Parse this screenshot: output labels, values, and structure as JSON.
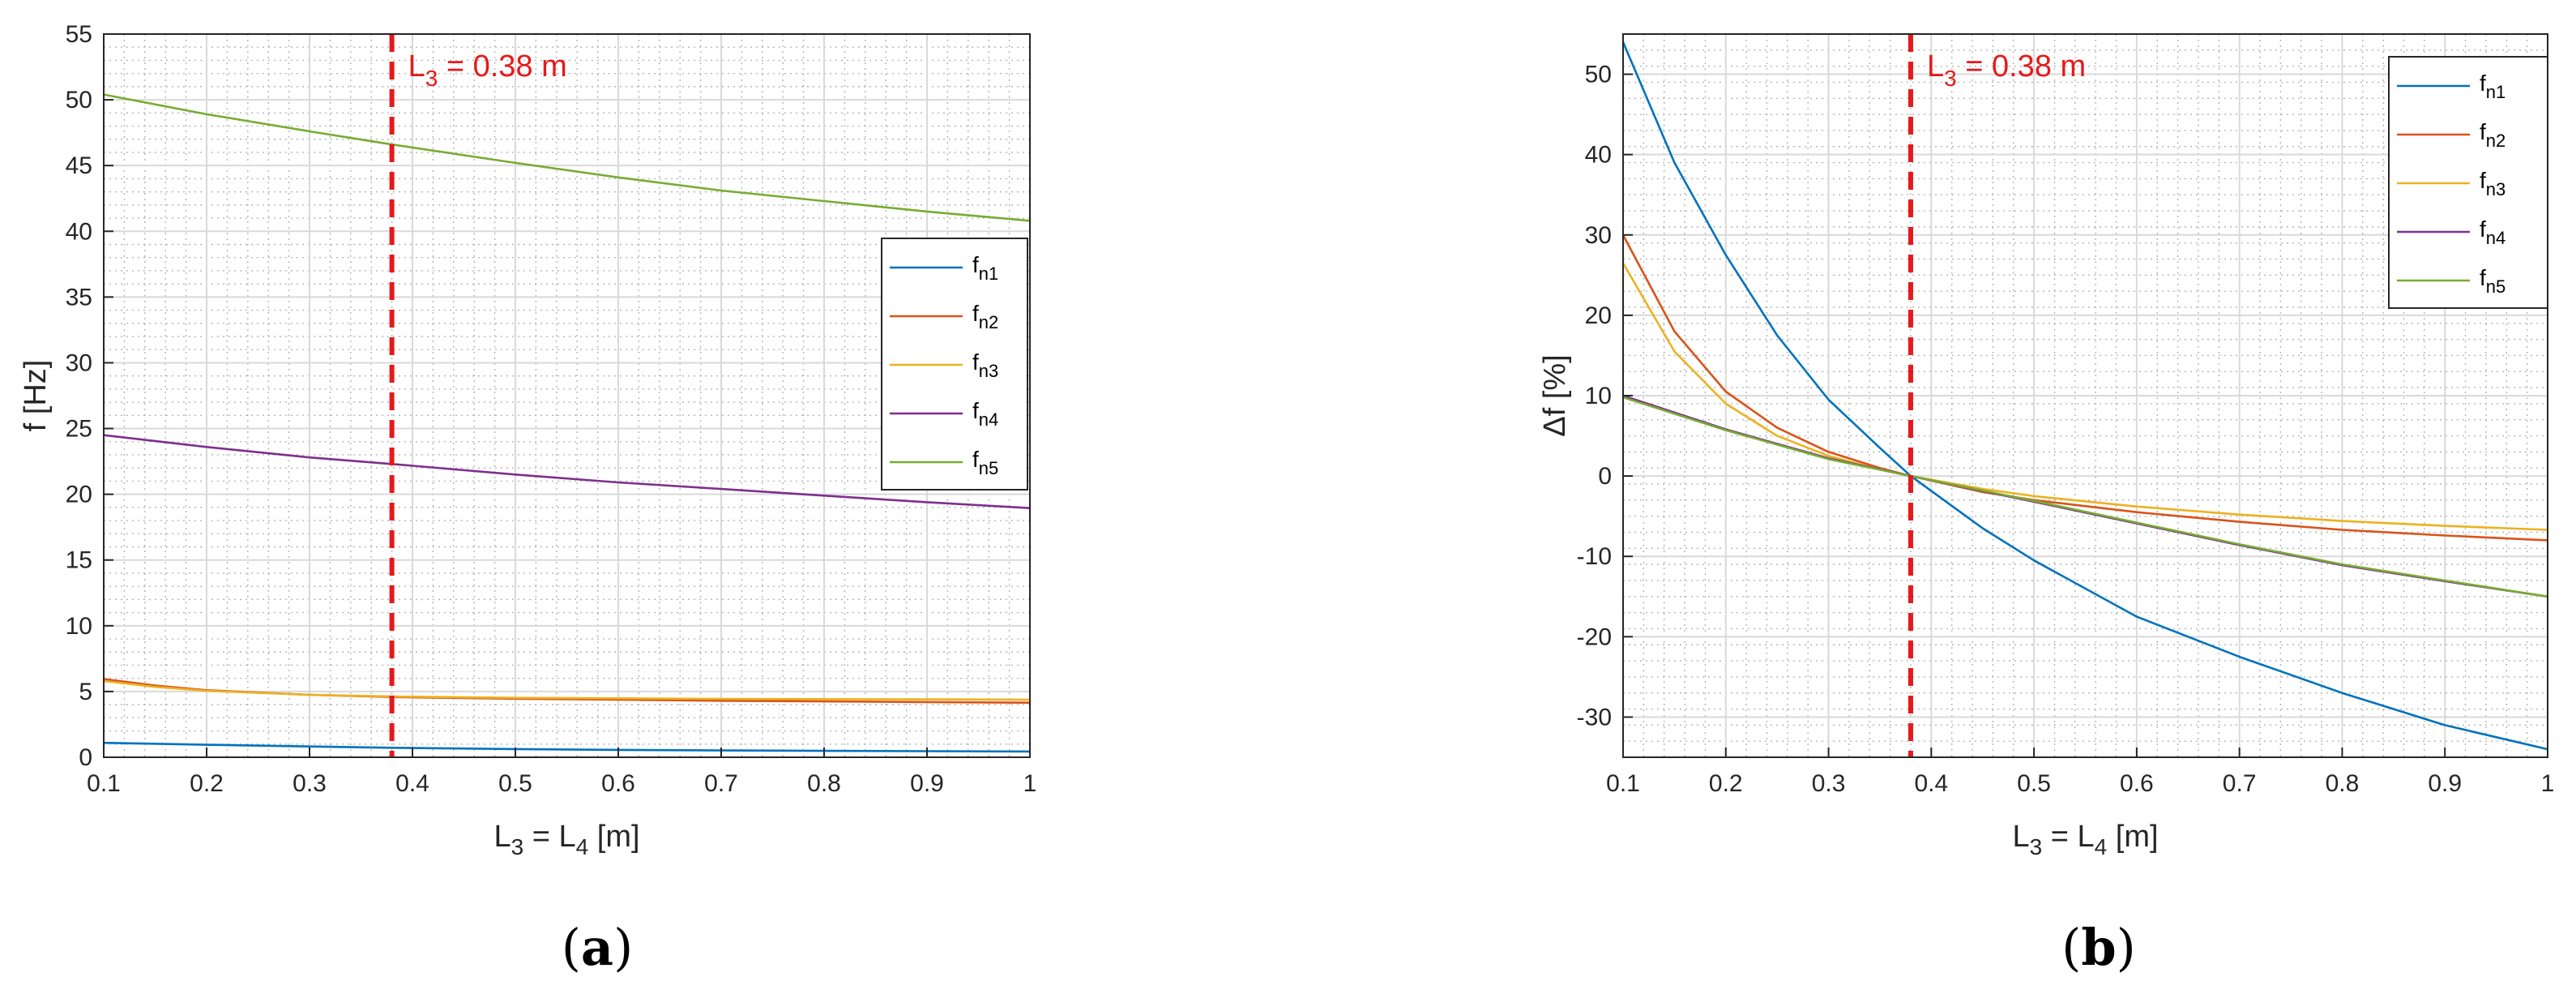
{
  "colors": {
    "fn1": "#0072BD",
    "fn2": "#D95319",
    "fn3": "#EDB120",
    "fn4": "#7E2F8E",
    "fn5": "#77AC30",
    "marker": "#E41A1C",
    "grid": "#d9d9d9",
    "minor_grid": "#b5b5b5",
    "axis": "#262626"
  },
  "chart_data": [
    {
      "id": "a",
      "type": "line",
      "sub_label_open": "(",
      "sub_label_letter": "a",
      "sub_label_close": ")",
      "xlabel": "L3 = L4 [m]",
      "xlabel_parts": {
        "l1": "L",
        "s1": "3",
        "eq": " = L",
        "s2": "4",
        "unit": " [m]"
      },
      "ylabel": "f [Hz]",
      "xlim": [
        0.1,
        1
      ],
      "ylim": [
        0,
        55
      ],
      "xticks": [
        0.1,
        0.2,
        0.3,
        0.4,
        0.5,
        0.6,
        0.7,
        0.8,
        0.9,
        1
      ],
      "xtick_labels": [
        "0.1",
        "0.2",
        "0.3",
        "0.4",
        "0.5",
        "0.6",
        "0.7",
        "0.8",
        "0.9",
        "1"
      ],
      "yticks": [
        0,
        5,
        10,
        15,
        20,
        25,
        30,
        35,
        40,
        45,
        50,
        55
      ],
      "ytick_labels": [
        "0",
        "5",
        "10",
        "15",
        "20",
        "25",
        "30",
        "35",
        "40",
        "45",
        "50",
        "55"
      ],
      "grid": true,
      "minor_grid": true,
      "legend_position": "right",
      "marker_line": {
        "x": 0.38,
        "label_main": "L",
        "label_sub": "3",
        "label_rest": " = 0.38 m"
      },
      "series": [
        {
          "key": "fn1",
          "name_main": "f",
          "name_sub": "n1",
          "x": [
            0.1,
            0.2,
            0.3,
            0.38,
            0.5,
            0.6,
            0.7,
            0.8,
            0.9,
            1.0
          ],
          "y": [
            1.1,
            0.95,
            0.82,
            0.72,
            0.62,
            0.56,
            0.52,
            0.49,
            0.46,
            0.44
          ]
        },
        {
          "key": "fn2",
          "name_main": "f",
          "name_sub": "n2",
          "x": [
            0.1,
            0.15,
            0.2,
            0.3,
            0.38,
            0.5,
            0.6,
            0.7,
            0.8,
            0.9,
            1.0
          ],
          "y": [
            5.95,
            5.45,
            5.1,
            4.75,
            4.58,
            4.45,
            4.38,
            4.3,
            4.25,
            4.2,
            4.15
          ]
        },
        {
          "key": "fn3",
          "name_main": "f",
          "name_sub": "n3",
          "x": [
            0.1,
            0.15,
            0.2,
            0.3,
            0.38,
            0.5,
            0.6,
            0.7,
            0.8,
            0.9,
            1.0
          ],
          "y": [
            5.8,
            5.35,
            5.05,
            4.75,
            4.62,
            4.52,
            4.48,
            4.44,
            4.42,
            4.4,
            4.38
          ]
        },
        {
          "key": "fn4",
          "name_main": "f",
          "name_sub": "n4",
          "x": [
            0.1,
            0.2,
            0.3,
            0.38,
            0.5,
            0.6,
            0.7,
            0.8,
            0.9,
            1.0
          ],
          "y": [
            24.5,
            23.6,
            22.8,
            22.3,
            21.5,
            20.9,
            20.4,
            19.9,
            19.4,
            18.95
          ]
        },
        {
          "key": "fn5",
          "name_main": "f",
          "name_sub": "n5",
          "x": [
            0.1,
            0.2,
            0.3,
            0.38,
            0.5,
            0.6,
            0.7,
            0.8,
            0.9,
            1.0
          ],
          "y": [
            50.4,
            48.9,
            47.6,
            46.6,
            45.2,
            44.1,
            43.1,
            42.3,
            41.5,
            40.8
          ]
        }
      ]
    },
    {
      "id": "b",
      "type": "line",
      "sub_label_open": "(",
      "sub_label_letter": "b",
      "sub_label_close": ")",
      "xlabel": "L3 = L4 [m]",
      "xlabel_parts": {
        "l1": "L",
        "s1": "3",
        "eq": " = L",
        "s2": "4",
        "unit": " [m]"
      },
      "ylabel": "Δf [%]",
      "xlim": [
        0.1,
        1
      ],
      "ylim": [
        -35,
        55
      ],
      "xticks": [
        0.1,
        0.2,
        0.3,
        0.4,
        0.5,
        0.6,
        0.7,
        0.8,
        0.9,
        1
      ],
      "xtick_labels": [
        "0.1",
        "0.2",
        "0.3",
        "0.4",
        "0.5",
        "0.6",
        "0.7",
        "0.8",
        "0.9",
        "1"
      ],
      "yticks": [
        -30,
        -20,
        -10,
        0,
        10,
        20,
        30,
        40,
        50
      ],
      "ytick_labels": [
        "-30",
        "-20",
        "-10",
        "0",
        "10",
        "20",
        "30",
        "40",
        "50"
      ],
      "grid": true,
      "minor_grid": true,
      "legend_position": "top-right",
      "marker_line": {
        "x": 0.38,
        "label_main": "L",
        "label_sub": "3",
        "label_rest": " = 0.38 m"
      },
      "series": [
        {
          "key": "fn1",
          "name_main": "f",
          "name_sub": "n1",
          "x": [
            0.1,
            0.15,
            0.2,
            0.25,
            0.3,
            0.35,
            0.38,
            0.45,
            0.5,
            0.6,
            0.7,
            0.8,
            0.9,
            1.0
          ],
          "y": [
            54,
            39,
            27.5,
            17.5,
            9.5,
            3.5,
            0,
            -6.5,
            -10.5,
            -17.5,
            -22.5,
            -27,
            -31,
            -34
          ]
        },
        {
          "key": "fn2",
          "name_main": "f",
          "name_sub": "n2",
          "x": [
            0.1,
            0.15,
            0.2,
            0.25,
            0.3,
            0.35,
            0.38,
            0.45,
            0.5,
            0.6,
            0.7,
            0.8,
            0.9,
            1.0
          ],
          "y": [
            30,
            18,
            10.5,
            6,
            3,
            1,
            0,
            -2,
            -3,
            -4.5,
            -5.7,
            -6.7,
            -7.4,
            -8
          ]
        },
        {
          "key": "fn3",
          "name_main": "f",
          "name_sub": "n3",
          "x": [
            0.1,
            0.15,
            0.2,
            0.25,
            0.3,
            0.35,
            0.38,
            0.45,
            0.5,
            0.6,
            0.7,
            0.8,
            0.9,
            1.0
          ],
          "y": [
            26.5,
            15.5,
            9,
            5,
            2.5,
            0.8,
            0,
            -1.6,
            -2.5,
            -3.8,
            -4.8,
            -5.6,
            -6.2,
            -6.7
          ]
        },
        {
          "key": "fn4",
          "name_main": "f",
          "name_sub": "n4",
          "x": [
            0.1,
            0.2,
            0.3,
            0.38,
            0.5,
            0.6,
            0.7,
            0.8,
            0.9,
            1.0
          ],
          "y": [
            10,
            5.8,
            2.2,
            0,
            -3.2,
            -5.9,
            -8.6,
            -11.1,
            -13.1,
            -15
          ]
        },
        {
          "key": "fn5",
          "name_main": "f",
          "name_sub": "n5",
          "x": [
            0.1,
            0.2,
            0.3,
            0.38,
            0.5,
            0.6,
            0.7,
            0.8,
            0.9,
            1.0
          ],
          "y": [
            9.8,
            5.7,
            2.1,
            0,
            -3.1,
            -5.8,
            -8.5,
            -11,
            -13,
            -15
          ]
        }
      ]
    }
  ]
}
